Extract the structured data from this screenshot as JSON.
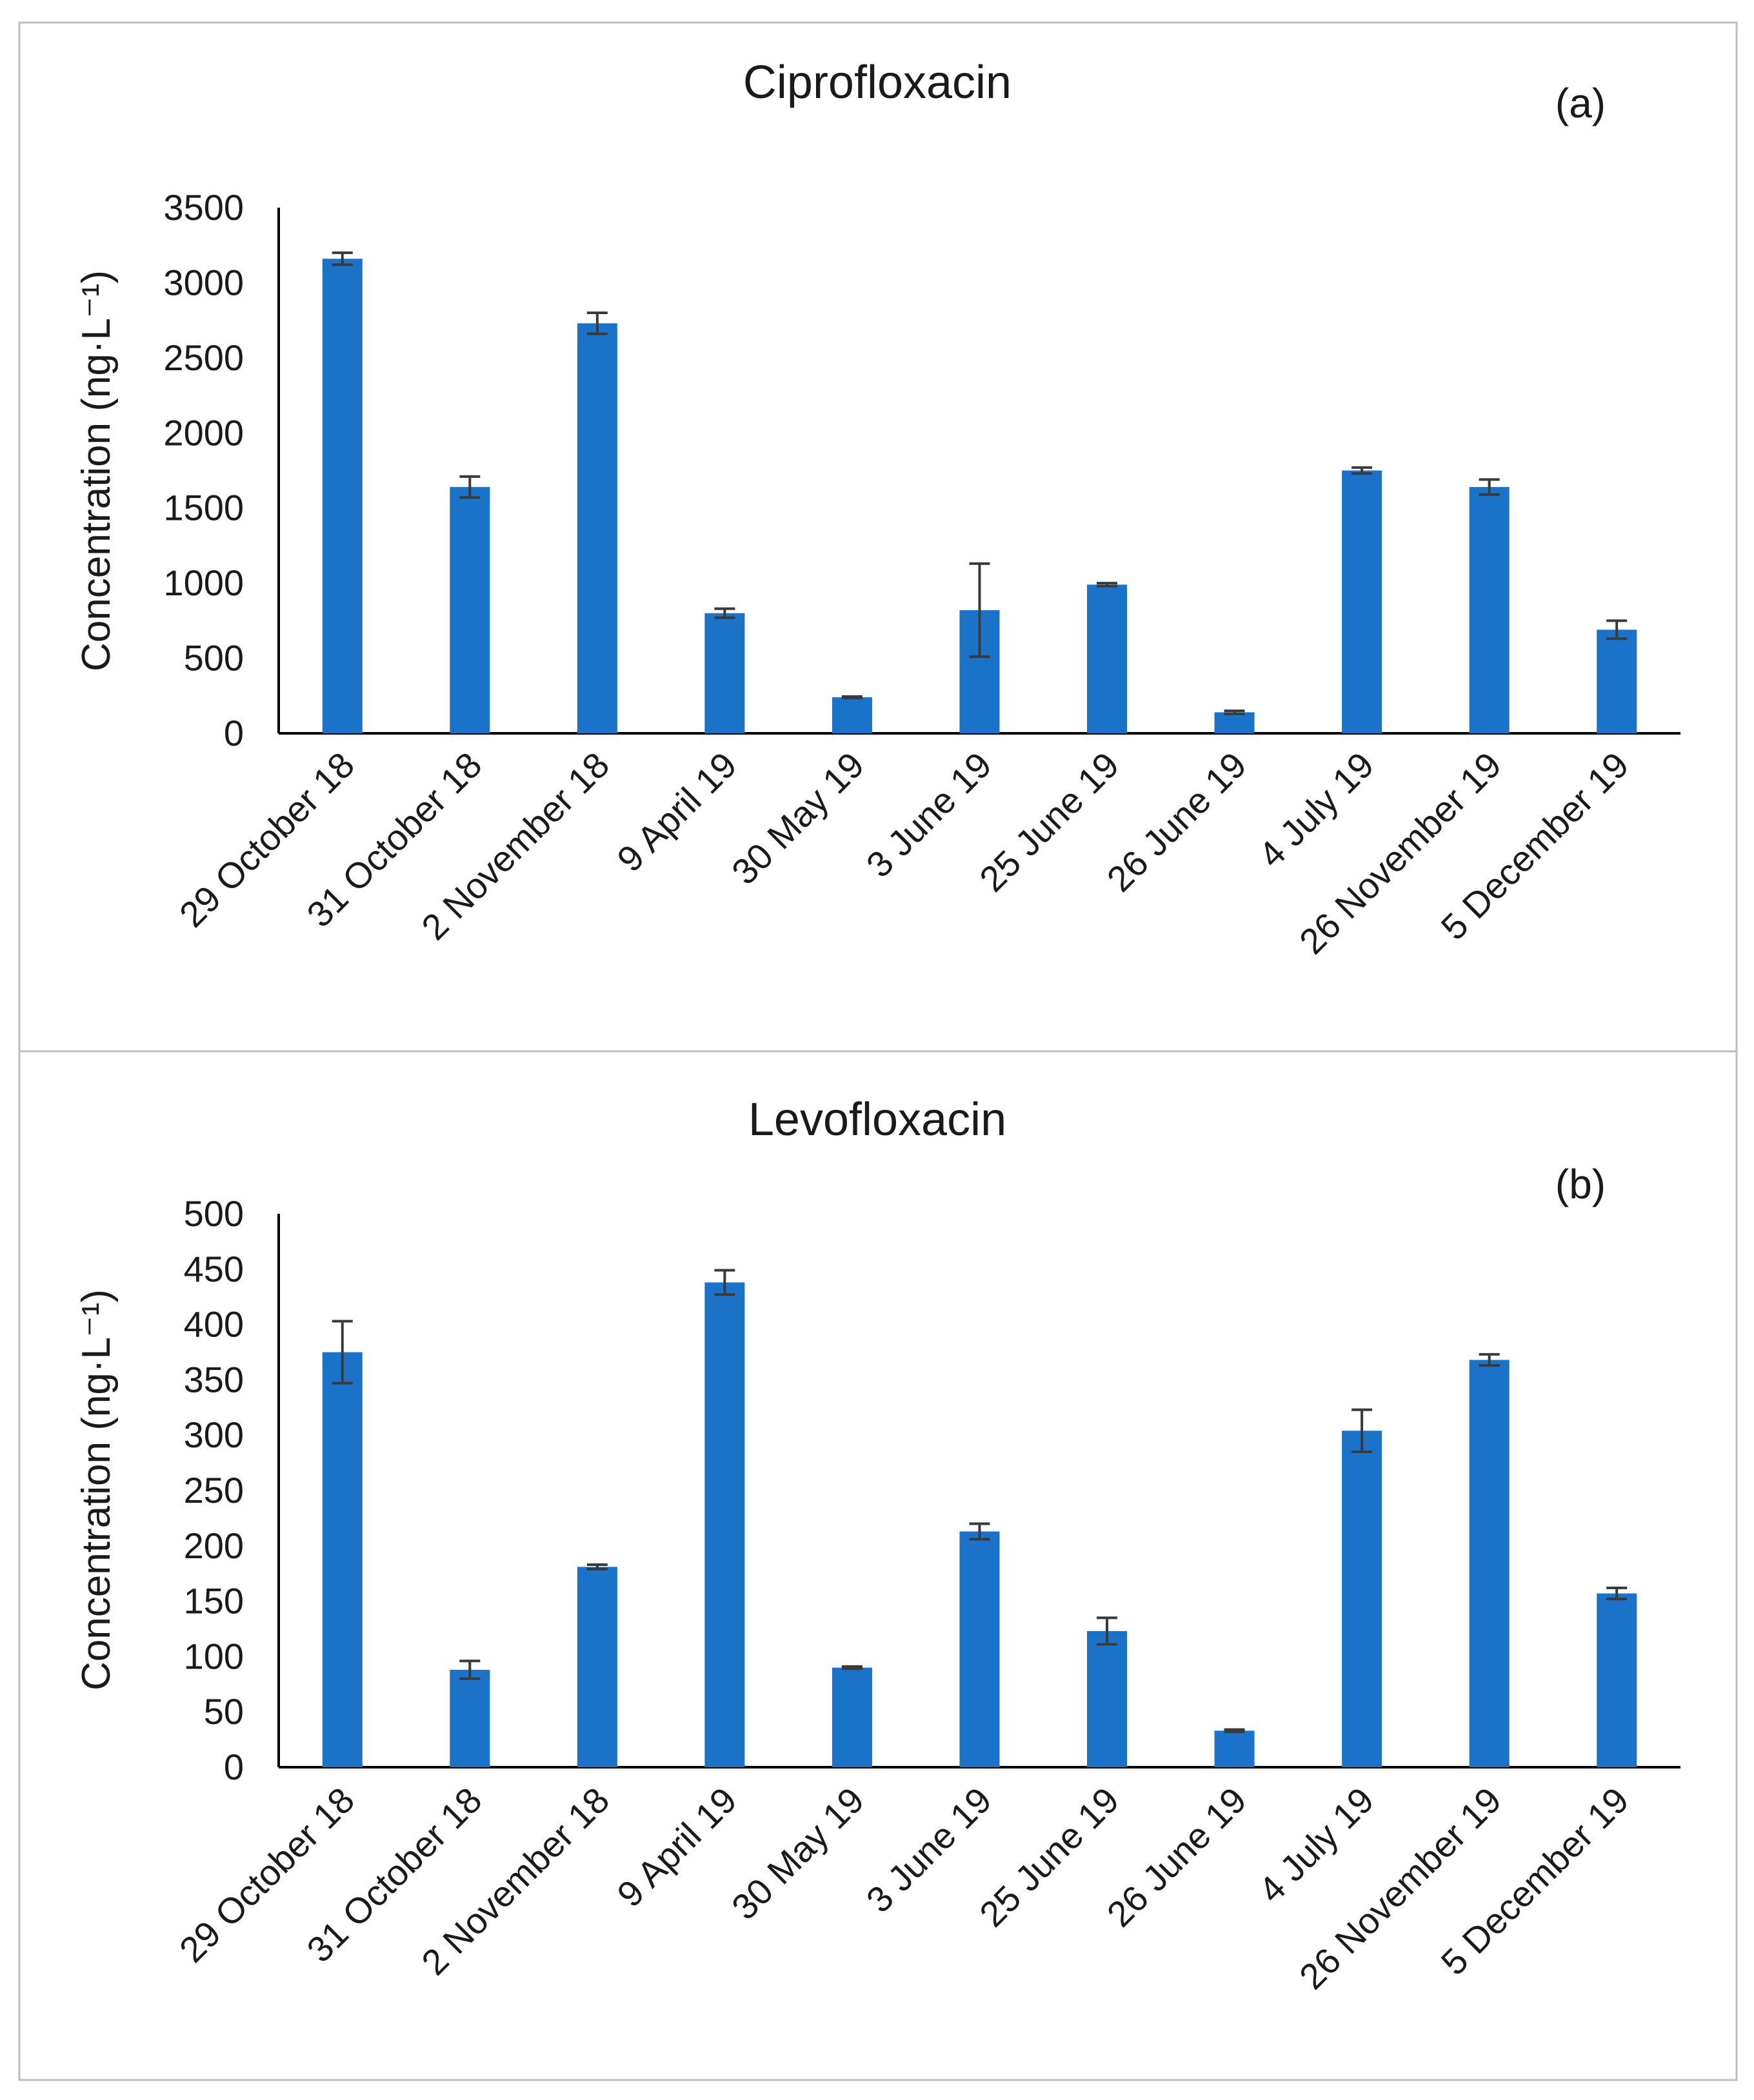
{
  "chart_data": [
    {
      "type": "bar",
      "title": "Ciprofloxacin",
      "panel_label": "(a)",
      "ylabel": "Concentration (ng·L⁻¹)",
      "xlabel": "",
      "ylim": [
        0,
        3500
      ],
      "yticks": [
        0,
        500,
        1000,
        1500,
        2000,
        2500,
        3000,
        3500
      ],
      "categories": [
        "29 October 18",
        "31 October 18",
        "2 November 18",
        "9 April 19",
        "30 May 19",
        "3 June 19",
        "25 June 19",
        "26 June 19",
        "4 July 19",
        "26 November 19",
        "5 December 19"
      ],
      "values": [
        3160,
        1640,
        2730,
        800,
        240,
        820,
        990,
        140,
        1750,
        1640,
        690
      ],
      "errors": [
        40,
        70,
        70,
        30,
        5,
        310,
        10,
        10,
        20,
        50,
        60
      ],
      "color": "#1b72c9",
      "legend": "none"
    },
    {
      "type": "bar",
      "title": "Levofloxacin",
      "panel_label": "(b)",
      "ylabel": "Concentration (ng·L⁻¹)",
      "xlabel": "",
      "ylim": [
        0,
        500
      ],
      "yticks": [
        0,
        50,
        100,
        150,
        200,
        250,
        300,
        350,
        400,
        450,
        500
      ],
      "categories": [
        "29 October 18",
        "31 October 18",
        "2 November 18",
        "9 April 19",
        "30 May 19",
        "3 June 19",
        "25 June 19",
        "26 June 19",
        "4 July 19",
        "26 November 19",
        "5 December 19"
      ],
      "values": [
        375,
        88,
        181,
        438,
        90,
        213,
        123,
        33,
        304,
        368,
        157
      ],
      "errors": [
        28,
        8,
        2,
        11,
        1,
        7,
        12,
        1,
        19,
        5,
        5
      ],
      "color": "#1b72c9",
      "legend": "none"
    }
  ]
}
